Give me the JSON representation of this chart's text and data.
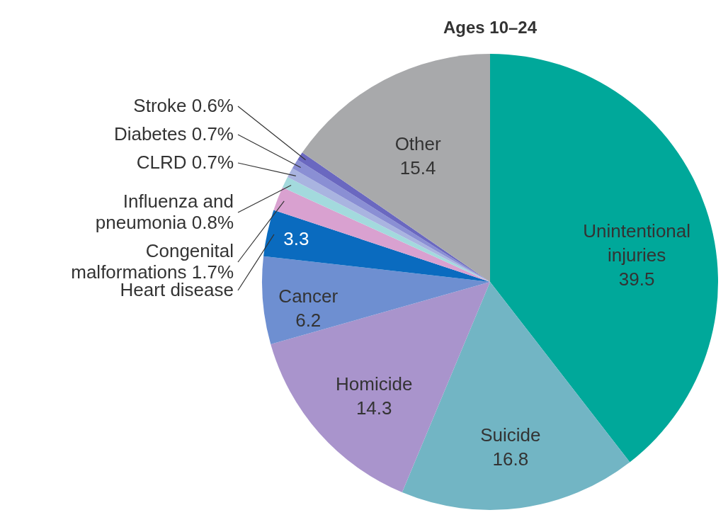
{
  "chart_data": {
    "type": "pie",
    "title": "Ages 10–24",
    "categories": [
      "Unintentional injuries",
      "Suicide",
      "Homicide",
      "Cancer",
      "Heart disease",
      "Congenital malformations",
      "Influenza and pneumonia",
      "CLRD",
      "Diabetes",
      "Stroke",
      "Other"
    ],
    "values": [
      39.5,
      16.8,
      14.3,
      6.2,
      3.3,
      1.7,
      0.8,
      0.7,
      0.7,
      0.6,
      15.4
    ],
    "colors": [
      "#00a89a",
      "#72b5c4",
      "#a994cc",
      "#6e8fd1",
      "#0a6bbf",
      "#d9a1d0",
      "#a3dadd",
      "#a9b4e0",
      "#8a8fd4",
      "#6a68c0",
      "#a8a9ab"
    ],
    "value_labels": [
      "39.5",
      "16.8",
      "14.3",
      "6.2",
      "3.3",
      "1.7%",
      "0.8%",
      "0.7%",
      "0.7%",
      "0.6%",
      "15.4"
    ]
  }
}
